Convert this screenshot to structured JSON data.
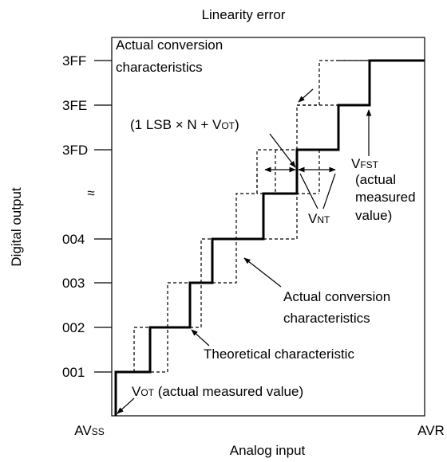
{
  "title": "Linearity error",
  "y_axis": {
    "label": "Digital output",
    "ticks": [
      "3FF",
      "3FE",
      "3FD",
      "004",
      "003",
      "002",
      "001"
    ]
  },
  "x_axis": {
    "label": "Analog input",
    "start": {
      "main": "AV",
      "sub": "SS"
    },
    "end": "AVR"
  },
  "annotations": {
    "actual_top": [
      "Actual conversion",
      "characteristics"
    ],
    "formula": {
      "main": "(1 LSB × N + V",
      "sub": "OT",
      "rest": ")"
    },
    "vfst": {
      "main": "V",
      "sub": "FST",
      "lines": [
        "(actual",
        "measured",
        "value)"
      ]
    },
    "vnt": {
      "main": "V",
      "sub": "NT"
    },
    "actual_bottom": [
      "Actual conversion",
      "characteristics"
    ],
    "theoretical": "Theoretical characteristic",
    "vot": {
      "main": "V",
      "sub": "OT",
      "rest": " (actual measured value)"
    }
  }
}
